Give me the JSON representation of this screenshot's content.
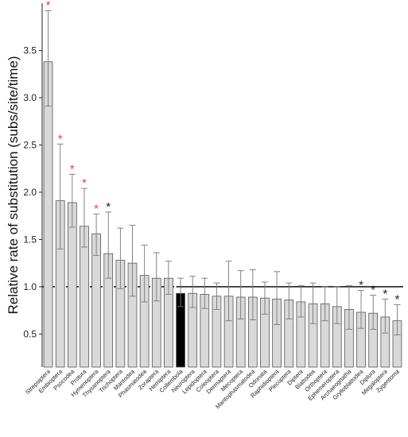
{
  "chart_data": {
    "type": "bar",
    "title": "",
    "xlabel": "",
    "ylabel": "Relative rate of substitution (subs/site/time)",
    "ylim": [
      0.15,
      4.0
    ],
    "yticks": [
      "0.5",
      "1.0",
      "1.5",
      "2.0",
      "2.5",
      "3.0",
      "3.5"
    ],
    "reference_line": 1.0,
    "grid": false,
    "bar_color": "#d9d9d9",
    "highlight_color": "#000000",
    "highlight_category": "Collembola",
    "significance_colors": {
      "red": "#e8403d",
      "black": "#222222"
    },
    "categories": [
      "Strepsiptera",
      "Embioptera",
      "Psocodea",
      "Protura",
      "Hymenoptera",
      "Thysanoptera",
      "Trichoptera",
      "Mantodea",
      "Phasmatodea",
      "Zoraptera",
      "Hemiptera",
      "Collembola",
      "Neuroptera",
      "Lepidoptera",
      "Coleoptera",
      "Dermaptera",
      "Mecoptera",
      "Mantophasmatodea",
      "Odonata",
      "Raphidioptera",
      "Plecoptera",
      "Diptera",
      "Blattodea",
      "Orthoptera",
      "Ephemeroptera",
      "Archaeognatha",
      "Grylloblattodea",
      "Diplura",
      "Megaloptera",
      "Zygentoma"
    ],
    "values": [
      3.38,
      1.91,
      1.89,
      1.64,
      1.56,
      1.35,
      1.28,
      1.25,
      1.12,
      1.09,
      1.09,
      0.93,
      0.93,
      0.92,
      0.9,
      0.9,
      0.89,
      0.89,
      0.88,
      0.87,
      0.86,
      0.84,
      0.82,
      0.82,
      0.79,
      0.76,
      0.73,
      0.72,
      0.68,
      0.64
    ],
    "error_upper": [
      3.92,
      2.51,
      2.19,
      2.04,
      1.77,
      1.79,
      1.62,
      1.65,
      1.44,
      1.36,
      1.27,
      1.09,
      1.11,
      1.09,
      1.04,
      1.27,
      1.17,
      1.18,
      1.05,
      1.16,
      1.04,
      1.01,
      1.04,
      1.0,
      1.0,
      1.01,
      0.96,
      0.91,
      0.87,
      0.81
    ],
    "error_lower": [
      2.91,
      1.4,
      1.63,
      1.42,
      1.33,
      1.09,
      0.98,
      0.9,
      0.84,
      0.85,
      0.92,
      0.79,
      0.78,
      0.77,
      0.76,
      0.64,
      0.66,
      0.65,
      0.71,
      0.6,
      0.66,
      0.68,
      0.61,
      0.64,
      0.61,
      0.55,
      0.56,
      0.55,
      0.51,
      0.49
    ],
    "significance": [
      "red",
      "red",
      "red",
      "red",
      "red",
      "black",
      "",
      "",
      "",
      "",
      "",
      "",
      "",
      "",
      "",
      "",
      "",
      "",
      "",
      "",
      "",
      "",
      "",
      "",
      "",
      "",
      "black",
      "black",
      "black",
      "black"
    ],
    "significance_marker": "*"
  }
}
